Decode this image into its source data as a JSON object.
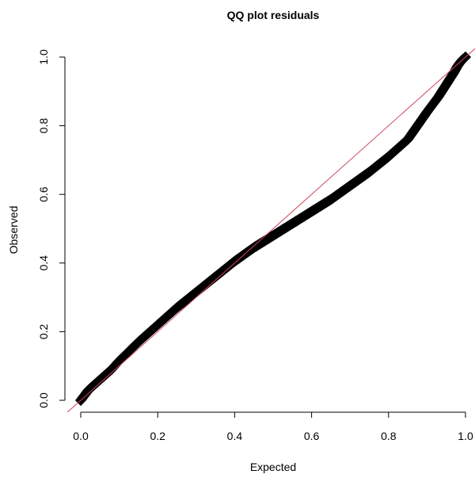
{
  "chart_data": {
    "type": "scatter",
    "title": "QQ plot residuals",
    "xlabel": "Expected",
    "ylabel": "Observed",
    "xlim": [
      0.0,
      1.0
    ],
    "ylim": [
      0.0,
      1.0
    ],
    "x_ticks": [
      "0.0",
      "0.2",
      "0.4",
      "0.6",
      "0.8",
      "1.0"
    ],
    "y_ticks": [
      "0.0",
      "0.2",
      "0.4",
      "0.6",
      "0.8",
      "1.0"
    ],
    "grid": false,
    "legend": "none",
    "reference_line": {
      "intercept": 0,
      "slope": 1,
      "color": "#d0455a"
    },
    "points_color": "#000000",
    "series": [
      {
        "x": [
          0.0,
          0.02,
          0.05,
          0.08,
          0.1,
          0.15,
          0.2,
          0.25,
          0.3,
          0.35,
          0.4,
          0.45,
          0.5,
          0.55,
          0.6,
          0.65,
          0.7,
          0.75,
          0.8,
          0.85,
          0.9,
          0.93,
          0.95,
          0.97,
          0.98,
          0.99,
          1.0
        ],
        "y": [
          0.0,
          0.03,
          0.06,
          0.09,
          0.115,
          0.17,
          0.22,
          0.27,
          0.315,
          0.36,
          0.405,
          0.445,
          0.48,
          0.515,
          0.55,
          0.585,
          0.625,
          0.665,
          0.71,
          0.76,
          0.84,
          0.885,
          0.92,
          0.955,
          0.975,
          0.99,
          1.0
        ]
      }
    ]
  }
}
